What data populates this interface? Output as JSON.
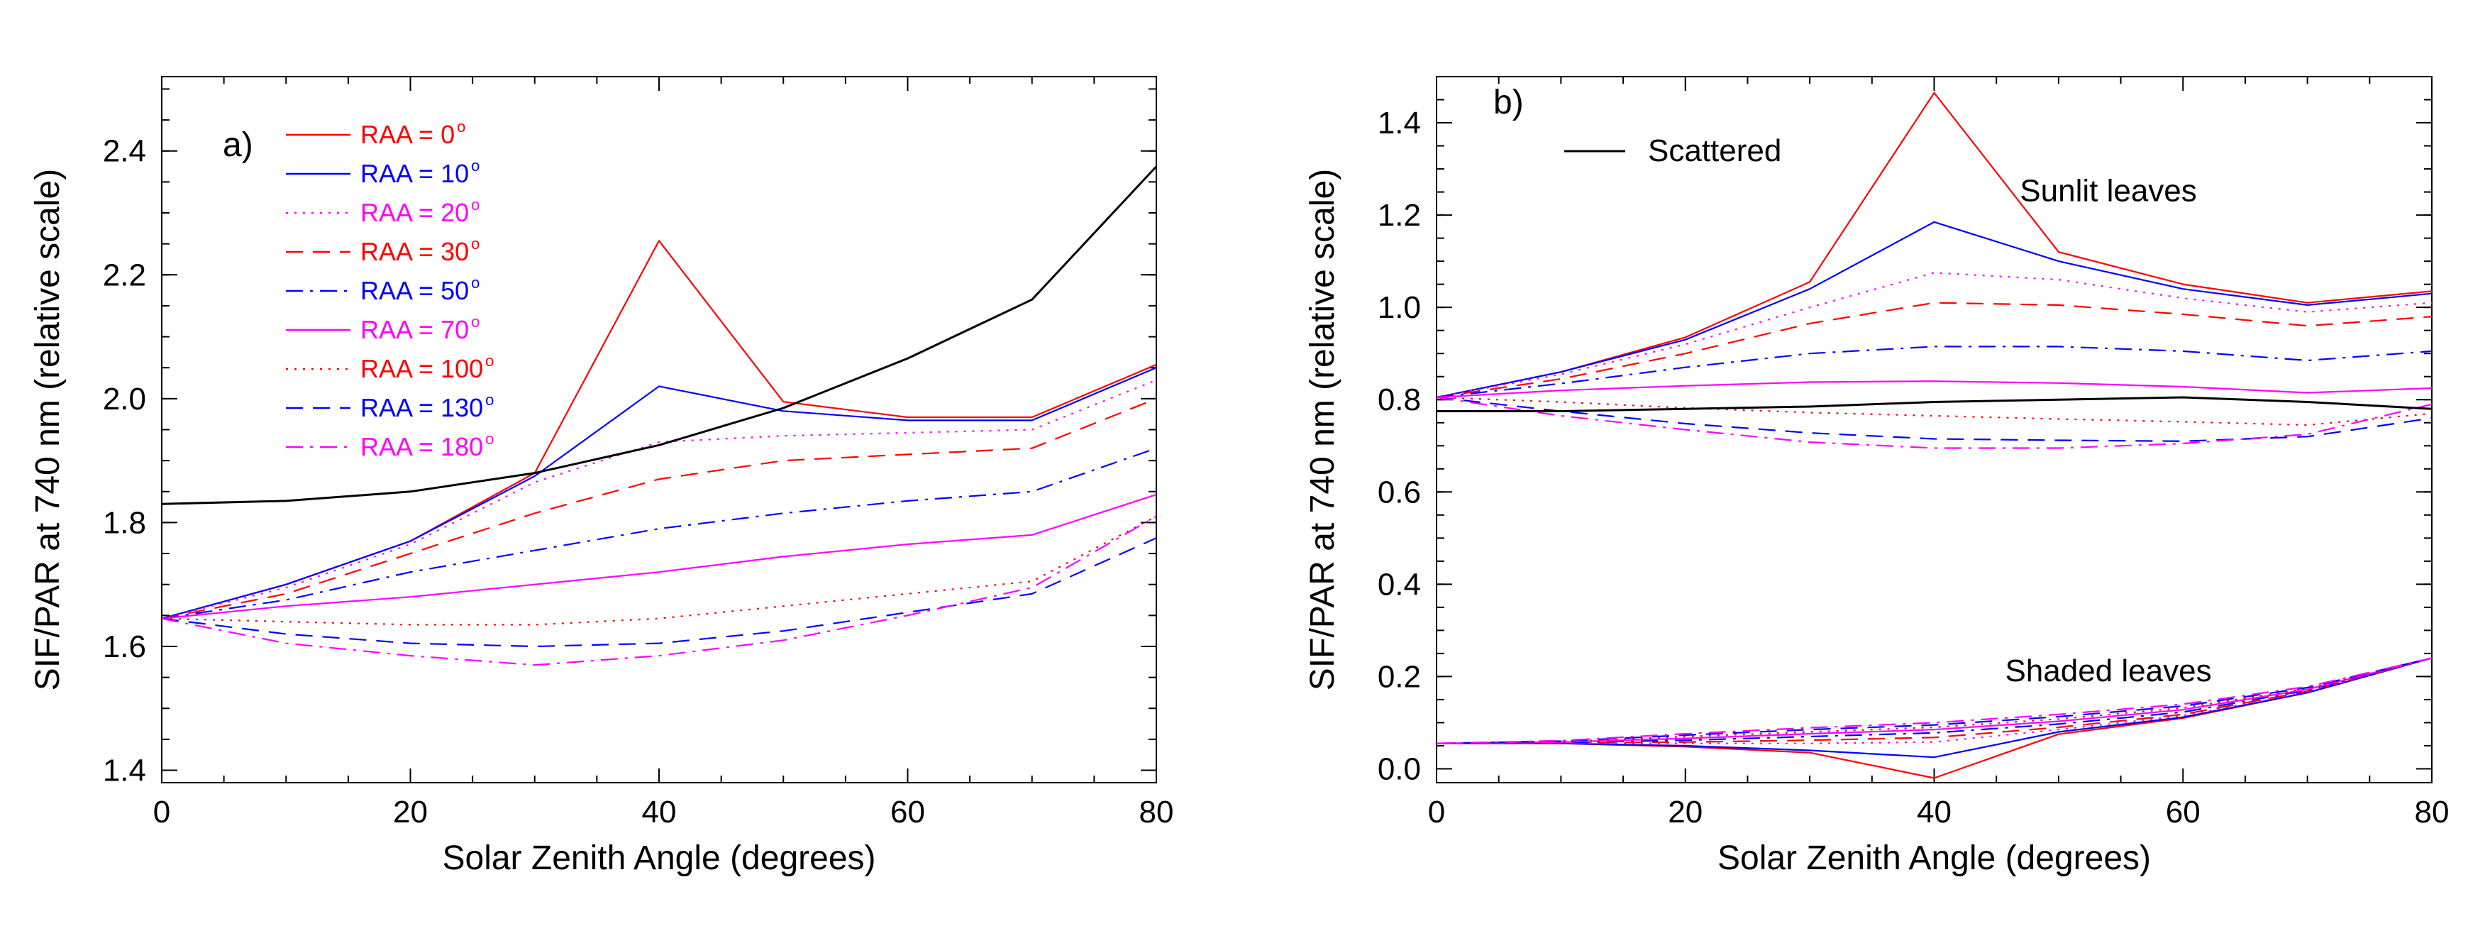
{
  "chart_data": [
    {
      "type": "line",
      "panel_label": "a)",
      "xlabel": "Solar Zenith Angle (degrees)",
      "ylabel": "SIF/PAR at 740 nm (relative scale)",
      "xlim": [
        0,
        80
      ],
      "ylim": [
        1.38,
        2.52
      ],
      "xticks": [
        0,
        20,
        40,
        60,
        80
      ],
      "yticks": [
        1.4,
        1.6,
        1.8,
        2.0,
        2.2,
        2.4
      ],
      "x": [
        0,
        10,
        20,
        30,
        40,
        50,
        60,
        70,
        80
      ],
      "legend_position": "top-left",
      "series": [
        {
          "name": "RAA = 0",
          "label_num": "0",
          "color": "#ff0000",
          "dash": "solid",
          "values": [
            1.645,
            1.7,
            1.77,
            1.88,
            2.255,
            1.995,
            1.97,
            1.97,
            2.055
          ]
        },
        {
          "name": "RAA = 10",
          "label_num": "10",
          "color": "#0000ff",
          "dash": "solid",
          "values": [
            1.645,
            1.7,
            1.77,
            1.875,
            2.02,
            1.98,
            1.965,
            1.965,
            2.05
          ]
        },
        {
          "name": "RAA = 20",
          "label_num": "20",
          "color": "#ff00ff",
          "dash": "dotted",
          "values": [
            1.645,
            1.695,
            1.765,
            1.865,
            1.93,
            1.94,
            1.945,
            1.95,
            2.03
          ]
        },
        {
          "name": "RAA = 30",
          "label_num": "30",
          "color": "#ff0000",
          "dash": "dashed",
          "values": [
            1.645,
            1.685,
            1.75,
            1.815,
            1.87,
            1.9,
            1.91,
            1.92,
            2.0
          ]
        },
        {
          "name": "RAA = 50",
          "label_num": "50",
          "color": "#0000ff",
          "dash": "dashdot",
          "values": [
            1.645,
            1.675,
            1.72,
            1.755,
            1.79,
            1.815,
            1.835,
            1.85,
            1.92
          ]
        },
        {
          "name": "RAA = 70",
          "label_num": "70",
          "color": "#ff00ff",
          "dash": "solid",
          "values": [
            1.645,
            1.665,
            1.68,
            1.7,
            1.72,
            1.745,
            1.765,
            1.78,
            1.845
          ]
        },
        {
          "name": "RAA = 100",
          "label_num": "100",
          "color": "#ff0000",
          "dash": "dotted",
          "values": [
            1.645,
            1.64,
            1.635,
            1.635,
            1.645,
            1.665,
            1.685,
            1.705,
            1.81
          ]
        },
        {
          "name": "RAA = 130",
          "label_num": "130",
          "color": "#0000ff",
          "dash": "dashed",
          "values": [
            1.645,
            1.62,
            1.605,
            1.6,
            1.605,
            1.625,
            1.655,
            1.685,
            1.775
          ]
        },
        {
          "name": "RAA = 180",
          "label_num": "180",
          "color": "#ff00ff",
          "dash": "dashdot",
          "values": [
            1.645,
            1.605,
            1.585,
            1.57,
            1.585,
            1.61,
            1.65,
            1.695,
            1.81
          ]
        },
        {
          "name": "",
          "color": "#000000",
          "dash": "solid",
          "width": 3,
          "values": [
            1.83,
            1.835,
            1.85,
            1.88,
            1.925,
            1.985,
            2.065,
            2.16,
            2.375
          ]
        }
      ]
    },
    {
      "type": "line",
      "panel_label": "b)",
      "xlabel": "Solar Zenith Angle (degrees)",
      "ylabel": "SIF/PAR at 740 nm (relative scale)",
      "xlim": [
        0,
        80
      ],
      "ylim": [
        -0.03,
        1.5
      ],
      "xticks": [
        0,
        20,
        40,
        60,
        80
      ],
      "yticks": [
        0.0,
        0.2,
        0.4,
        0.6,
        0.8,
        1.0,
        1.2,
        1.4
      ],
      "ytick_labels": [
        "0.0",
        "0.2",
        "0.4",
        "0.6",
        "0.8",
        "1.0",
        "1.2",
        "1.4"
      ],
      "x": [
        0,
        10,
        20,
        30,
        40,
        50,
        60,
        70,
        80
      ],
      "legend_position": "top-left",
      "legend": [
        {
          "name": "Scattered",
          "color": "#000000"
        }
      ],
      "annotations": [
        {
          "text": "Sunlit leaves",
          "x": 54,
          "y": 1.23
        },
        {
          "text": "Shaded leaves",
          "x": 54,
          "y": 0.19
        }
      ],
      "series": [
        {
          "group": "sunlit",
          "color": "#ff0000",
          "dash": "solid",
          "values": [
            0.805,
            0.86,
            0.935,
            1.055,
            1.465,
            1.12,
            1.05,
            1.01,
            1.035
          ]
        },
        {
          "group": "sunlit",
          "color": "#0000ff",
          "dash": "solid",
          "values": [
            0.805,
            0.86,
            0.93,
            1.04,
            1.185,
            1.1,
            1.04,
            1.005,
            1.03
          ]
        },
        {
          "group": "sunlit",
          "color": "#ff00ff",
          "dash": "dotted",
          "values": [
            0.805,
            0.855,
            0.92,
            1.0,
            1.075,
            1.06,
            1.02,
            0.99,
            1.01
          ]
        },
        {
          "group": "sunlit",
          "color": "#ff0000",
          "dash": "dashed",
          "values": [
            0.805,
            0.845,
            0.9,
            0.965,
            1.01,
            1.005,
            0.985,
            0.96,
            0.98
          ]
        },
        {
          "group": "sunlit",
          "color": "#0000ff",
          "dash": "dashdot",
          "values": [
            0.805,
            0.835,
            0.87,
            0.9,
            0.915,
            0.915,
            0.905,
            0.885,
            0.905
          ]
        },
        {
          "group": "sunlit",
          "color": "#ff00ff",
          "dash": "solid",
          "values": [
            0.805,
            0.82,
            0.83,
            0.838,
            0.84,
            0.836,
            0.828,
            0.815,
            0.825
          ]
        },
        {
          "group": "sunlit",
          "color": "#ff0000",
          "dash": "dotted",
          "values": [
            0.805,
            0.795,
            0.782,
            0.772,
            0.765,
            0.758,
            0.752,
            0.745,
            0.77
          ]
        },
        {
          "group": "sunlit",
          "color": "#0000ff",
          "dash": "dashed",
          "values": [
            0.805,
            0.775,
            0.748,
            0.728,
            0.715,
            0.712,
            0.71,
            0.72,
            0.76
          ]
        },
        {
          "group": "sunlit",
          "color": "#ff00ff",
          "dash": "dashdot",
          "values": [
            0.805,
            0.765,
            0.735,
            0.708,
            0.695,
            0.695,
            0.705,
            0.725,
            0.79
          ]
        },
        {
          "group": "scattered",
          "color": "#000000",
          "dash": "solid",
          "width": 3,
          "values": [
            0.775,
            0.775,
            0.78,
            0.785,
            0.795,
            0.8,
            0.805,
            0.795,
            0.78
          ]
        },
        {
          "group": "shaded",
          "color": "#ff0000",
          "dash": "solid",
          "values": [
            0.055,
            0.055,
            0.048,
            0.035,
            -0.02,
            0.075,
            0.11,
            0.165,
            0.24
          ]
        },
        {
          "group": "shaded",
          "color": "#0000ff",
          "dash": "solid",
          "values": [
            0.055,
            0.055,
            0.05,
            0.04,
            0.025,
            0.08,
            0.112,
            0.165,
            0.24
          ]
        },
        {
          "group": "shaded",
          "color": "#ff00ff",
          "dash": "dotted",
          "values": [
            0.055,
            0.056,
            0.055,
            0.055,
            0.058,
            0.085,
            0.115,
            0.167,
            0.24
          ]
        },
        {
          "group": "shaded",
          "color": "#ff0000",
          "dash": "dashed",
          "values": [
            0.055,
            0.056,
            0.058,
            0.062,
            0.068,
            0.09,
            0.118,
            0.168,
            0.24
          ]
        },
        {
          "group": "shaded",
          "color": "#0000ff",
          "dash": "dashdot",
          "values": [
            0.055,
            0.057,
            0.062,
            0.07,
            0.078,
            0.097,
            0.123,
            0.17,
            0.24
          ]
        },
        {
          "group": "shaded",
          "color": "#ff00ff",
          "dash": "solid",
          "values": [
            0.055,
            0.058,
            0.066,
            0.076,
            0.085,
            0.103,
            0.128,
            0.172,
            0.24
          ]
        },
        {
          "group": "shaded",
          "color": "#ff0000",
          "dash": "dotted",
          "values": [
            0.055,
            0.059,
            0.07,
            0.08,
            0.09,
            0.108,
            0.132,
            0.174,
            0.24
          ]
        },
        {
          "group": "shaded",
          "color": "#0000ff",
          "dash": "dashed",
          "values": [
            0.055,
            0.06,
            0.073,
            0.085,
            0.095,
            0.113,
            0.136,
            0.176,
            0.24
          ]
        },
        {
          "group": "shaded",
          "color": "#ff00ff",
          "dash": "dashdot",
          "values": [
            0.055,
            0.061,
            0.076,
            0.089,
            0.1,
            0.118,
            0.14,
            0.178,
            0.24
          ]
        }
      ]
    }
  ]
}
